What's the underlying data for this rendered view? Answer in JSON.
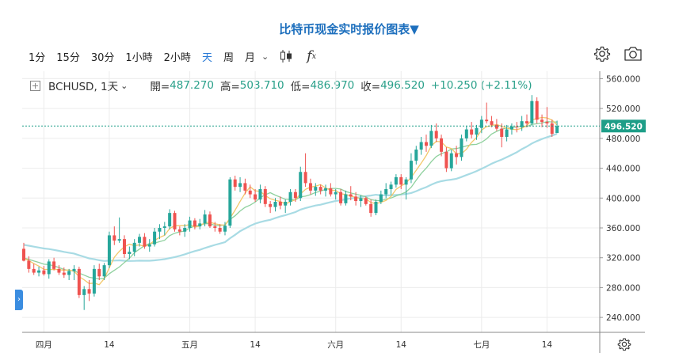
{
  "page": {
    "title": "比特币现金实时报价图表▼"
  },
  "toolbar": {
    "intervals": [
      "1分",
      "15分",
      "30分",
      "1小時",
      "2小時",
      "天",
      "周",
      "月"
    ],
    "active_interval": "天",
    "chevron": "⌄",
    "fx_label": "f",
    "fx_sub": "x"
  },
  "legend": {
    "symbol": "BCHUSD, 1天",
    "chevron": "⌄",
    "open_label": "開=",
    "open": "487.270",
    "high_label": "高=",
    "high": "503.710",
    "low_label": "低=",
    "low": "486.970",
    "close_label": "收=",
    "close": "496.520",
    "change": "+10.250 (+2.11%)"
  },
  "side_tab": "›",
  "colors": {
    "up": "#26a69a",
    "down": "#ef5350",
    "ma_fast": "#f3c86a",
    "ma_mid": "#8fd19e",
    "ma_slow": "#a8dbe4",
    "price_line": "#1e9e88",
    "grid": "#ececec",
    "title": "#1d6fbd"
  },
  "chart_data": {
    "type": "candlestick",
    "symbol": "BCHUSD",
    "interval": "1天",
    "ylim": [
      220,
      570
    ],
    "y_ticks": [
      "240.000",
      "280.000",
      "320.000",
      "360.000",
      "400.000",
      "440.000",
      "480.000",
      "520.000",
      "560.000"
    ],
    "x_ticks": [
      "四月",
      "14",
      "五月",
      "14",
      "六月",
      "14",
      "七月",
      "14"
    ],
    "last_price": "496.520",
    "grid": true,
    "candles": [
      {
        "o": 332,
        "h": 340,
        "l": 315,
        "c": 316
      },
      {
        "o": 316,
        "h": 322,
        "l": 300,
        "c": 305
      },
      {
        "o": 305,
        "h": 312,
        "l": 297,
        "c": 300
      },
      {
        "o": 300,
        "h": 308,
        "l": 295,
        "c": 303
      },
      {
        "o": 303,
        "h": 309,
        "l": 296,
        "c": 298
      },
      {
        "o": 298,
        "h": 318,
        "l": 292,
        "c": 315
      },
      {
        "o": 315,
        "h": 320,
        "l": 303,
        "c": 305
      },
      {
        "o": 305,
        "h": 310,
        "l": 297,
        "c": 300
      },
      {
        "o": 300,
        "h": 307,
        "l": 293,
        "c": 297
      },
      {
        "o": 297,
        "h": 305,
        "l": 290,
        "c": 302
      },
      {
        "o": 302,
        "h": 310,
        "l": 290,
        "c": 305
      },
      {
        "o": 305,
        "h": 308,
        "l": 266,
        "c": 270
      },
      {
        "o": 270,
        "h": 282,
        "l": 250,
        "c": 278
      },
      {
        "o": 278,
        "h": 290,
        "l": 262,
        "c": 272
      },
      {
        "o": 272,
        "h": 310,
        "l": 268,
        "c": 305
      },
      {
        "o": 305,
        "h": 312,
        "l": 290,
        "c": 295
      },
      {
        "o": 295,
        "h": 313,
        "l": 290,
        "c": 310
      },
      {
        "o": 310,
        "h": 355,
        "l": 306,
        "c": 350
      },
      {
        "o": 350,
        "h": 362,
        "l": 337,
        "c": 343
      },
      {
        "o": 343,
        "h": 374,
        "l": 340,
        "c": 345
      },
      {
        "o": 345,
        "h": 350,
        "l": 320,
        "c": 325
      },
      {
        "o": 325,
        "h": 335,
        "l": 318,
        "c": 328
      },
      {
        "o": 328,
        "h": 345,
        "l": 322,
        "c": 340
      },
      {
        "o": 340,
        "h": 352,
        "l": 335,
        "c": 348
      },
      {
        "o": 348,
        "h": 353,
        "l": 332,
        "c": 335
      },
      {
        "o": 335,
        "h": 345,
        "l": 328,
        "c": 338
      },
      {
        "o": 338,
        "h": 360,
        "l": 335,
        "c": 355
      },
      {
        "o": 355,
        "h": 365,
        "l": 345,
        "c": 360
      },
      {
        "o": 360,
        "h": 368,
        "l": 350,
        "c": 362
      },
      {
        "o": 362,
        "h": 385,
        "l": 358,
        "c": 380
      },
      {
        "o": 380,
        "h": 383,
        "l": 355,
        "c": 358
      },
      {
        "o": 358,
        "h": 362,
        "l": 350,
        "c": 355
      },
      {
        "o": 355,
        "h": 365,
        "l": 348,
        "c": 360
      },
      {
        "o": 360,
        "h": 375,
        "l": 355,
        "c": 370
      },
      {
        "o": 370,
        "h": 373,
        "l": 358,
        "c": 362
      },
      {
        "o": 362,
        "h": 372,
        "l": 358,
        "c": 366
      },
      {
        "o": 366,
        "h": 384,
        "l": 362,
        "c": 378
      },
      {
        "o": 378,
        "h": 382,
        "l": 360,
        "c": 362
      },
      {
        "o": 362,
        "h": 368,
        "l": 355,
        "c": 360
      },
      {
        "o": 360,
        "h": 365,
        "l": 352,
        "c": 355
      },
      {
        "o": 355,
        "h": 368,
        "l": 350,
        "c": 363
      },
      {
        "o": 363,
        "h": 428,
        "l": 360,
        "c": 425
      },
      {
        "o": 425,
        "h": 430,
        "l": 410,
        "c": 415
      },
      {
        "o": 415,
        "h": 428,
        "l": 408,
        "c": 420
      },
      {
        "o": 420,
        "h": 426,
        "l": 405,
        "c": 410
      },
      {
        "o": 410,
        "h": 418,
        "l": 400,
        "c": 405
      },
      {
        "o": 405,
        "h": 412,
        "l": 395,
        "c": 398
      },
      {
        "o": 398,
        "h": 418,
        "l": 393,
        "c": 412
      },
      {
        "o": 412,
        "h": 416,
        "l": 388,
        "c": 392
      },
      {
        "o": 392,
        "h": 396,
        "l": 380,
        "c": 388
      },
      {
        "o": 388,
        "h": 400,
        "l": 382,
        "c": 395
      },
      {
        "o": 395,
        "h": 402,
        "l": 385,
        "c": 390
      },
      {
        "o": 390,
        "h": 398,
        "l": 380,
        "c": 395
      },
      {
        "o": 395,
        "h": 412,
        "l": 390,
        "c": 408
      },
      {
        "o": 408,
        "h": 412,
        "l": 395,
        "c": 400
      },
      {
        "o": 400,
        "h": 442,
        "l": 396,
        "c": 435
      },
      {
        "o": 435,
        "h": 460,
        "l": 415,
        "c": 420
      },
      {
        "o": 420,
        "h": 426,
        "l": 405,
        "c": 410
      },
      {
        "o": 410,
        "h": 420,
        "l": 403,
        "c": 415
      },
      {
        "o": 415,
        "h": 418,
        "l": 405,
        "c": 410
      },
      {
        "o": 410,
        "h": 418,
        "l": 402,
        "c": 413
      },
      {
        "o": 413,
        "h": 420,
        "l": 402,
        "c": 405
      },
      {
        "o": 405,
        "h": 412,
        "l": 398,
        "c": 408
      },
      {
        "o": 408,
        "h": 412,
        "l": 390,
        "c": 393
      },
      {
        "o": 393,
        "h": 410,
        "l": 390,
        "c": 405
      },
      {
        "o": 405,
        "h": 416,
        "l": 397,
        "c": 402
      },
      {
        "o": 402,
        "h": 408,
        "l": 390,
        "c": 396
      },
      {
        "o": 396,
        "h": 404,
        "l": 388,
        "c": 400
      },
      {
        "o": 400,
        "h": 402,
        "l": 390,
        "c": 392
      },
      {
        "o": 392,
        "h": 398,
        "l": 375,
        "c": 380
      },
      {
        "o": 380,
        "h": 398,
        "l": 377,
        "c": 395
      },
      {
        "o": 395,
        "h": 410,
        "l": 392,
        "c": 405
      },
      {
        "o": 405,
        "h": 420,
        "l": 400,
        "c": 412
      },
      {
        "o": 412,
        "h": 422,
        "l": 404,
        "c": 418
      },
      {
        "o": 418,
        "h": 432,
        "l": 414,
        "c": 428
      },
      {
        "o": 428,
        "h": 432,
        "l": 412,
        "c": 418
      },
      {
        "o": 418,
        "h": 428,
        "l": 398,
        "c": 425
      },
      {
        "o": 425,
        "h": 460,
        "l": 420,
        "c": 450
      },
      {
        "o": 450,
        "h": 470,
        "l": 445,
        "c": 465
      },
      {
        "o": 465,
        "h": 482,
        "l": 458,
        "c": 475
      },
      {
        "o": 475,
        "h": 485,
        "l": 462,
        "c": 470
      },
      {
        "o": 470,
        "h": 498,
        "l": 467,
        "c": 490
      },
      {
        "o": 490,
        "h": 500,
        "l": 475,
        "c": 480
      },
      {
        "o": 480,
        "h": 485,
        "l": 456,
        "c": 462
      },
      {
        "o": 462,
        "h": 468,
        "l": 435,
        "c": 440
      },
      {
        "o": 440,
        "h": 465,
        "l": 436,
        "c": 460
      },
      {
        "o": 460,
        "h": 470,
        "l": 445,
        "c": 455
      },
      {
        "o": 455,
        "h": 485,
        "l": 450,
        "c": 480
      },
      {
        "o": 480,
        "h": 497,
        "l": 476,
        "c": 492
      },
      {
        "o": 492,
        "h": 502,
        "l": 480,
        "c": 485
      },
      {
        "o": 485,
        "h": 498,
        "l": 478,
        "c": 494
      },
      {
        "o": 494,
        "h": 510,
        "l": 487,
        "c": 505
      },
      {
        "o": 505,
        "h": 528,
        "l": 500,
        "c": 503
      },
      {
        "o": 503,
        "h": 510,
        "l": 495,
        "c": 498
      },
      {
        "o": 498,
        "h": 506,
        "l": 490,
        "c": 493
      },
      {
        "o": 493,
        "h": 500,
        "l": 468,
        "c": 482
      },
      {
        "o": 482,
        "h": 498,
        "l": 476,
        "c": 492
      },
      {
        "o": 492,
        "h": 500,
        "l": 485,
        "c": 496
      },
      {
        "o": 496,
        "h": 502,
        "l": 488,
        "c": 495
      },
      {
        "o": 495,
        "h": 510,
        "l": 490,
        "c": 503
      },
      {
        "o": 503,
        "h": 512,
        "l": 495,
        "c": 500
      },
      {
        "o": 500,
        "h": 538,
        "l": 497,
        "c": 530
      },
      {
        "o": 530,
        "h": 535,
        "l": 500,
        "c": 505
      },
      {
        "o": 505,
        "h": 512,
        "l": 495,
        "c": 502
      },
      {
        "o": 502,
        "h": 522,
        "l": 494,
        "c": 500
      },
      {
        "o": 500,
        "h": 505,
        "l": 482,
        "c": 486
      },
      {
        "o": 487.27,
        "h": 503.71,
        "l": 486.97,
        "c": 496.52
      }
    ]
  }
}
